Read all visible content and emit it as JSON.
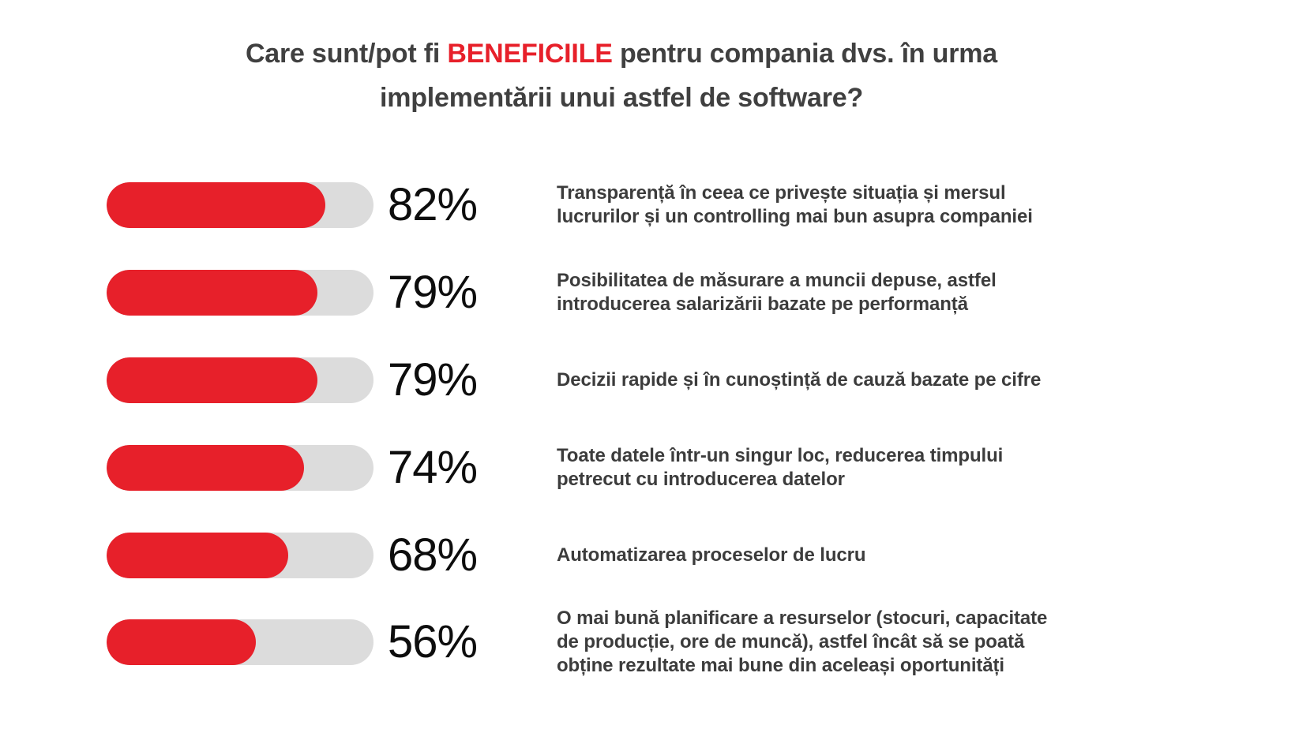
{
  "page": {
    "background_color": "#ffffff"
  },
  "title": {
    "prefix": "Care sunt/pot fi ",
    "highlight": "BENEFICIILE",
    "suffix": " pentru compania dvs. în urma\nimplementării unui astfel de software?",
    "text_color": "#404040",
    "highlight_color": "#e7202a"
  },
  "chart_data": {
    "type": "bar",
    "orientation": "horizontal",
    "unit": "%",
    "value_range": [
      0,
      100
    ],
    "bar_track_color": "#dcdcdc",
    "bar_fill_color": "#e7202a",
    "value_label_color": "#0d0d0d",
    "category_label_color": "#3c3c3c",
    "categories": [
      "Transparență în ceea ce privește situația și mersul lucrurilor și un controlling mai bun asupra companiei",
      "Posibilitatea de măsurare a muncii depuse, astfel introducerea salarizării bazate pe performanță",
      "Decizii rapide și în cunoștință de cauză bazate pe cifre",
      "Toate datele într-un singur loc, reducerea timpului petrecut cu introducerea datelor",
      "Automatizarea proceselor de lucru",
      "O mai bună planificare a resurselor (stocuri, capacitate de producție, ore de muncă), astfel încât să se poată obține rezultate mai bune din aceleași oportunități"
    ],
    "values": [
      82,
      79,
      79,
      74,
      68,
      56
    ],
    "rows": [
      {
        "value": 82,
        "value_label": "82%",
        "label": "Transparență în ceea ce privește situația și mersul\nlucrurilor și un controlling mai bun asupra companiei"
      },
      {
        "value": 79,
        "value_label": "79%",
        "label": "Posibilitatea de măsurare a muncii depuse, astfel\nintroducerea salarizării bazate pe performanță"
      },
      {
        "value": 79,
        "value_label": "79%",
        "label": "Decizii rapide și în cunoștință de cauză bazate pe cifre"
      },
      {
        "value": 74,
        "value_label": "74%",
        "label": "Toate datele într-un singur loc, reducerea timpului\npetrecut cu introducerea datelor"
      },
      {
        "value": 68,
        "value_label": "68%",
        "label": "Automatizarea proceselor de lucru"
      },
      {
        "value": 56,
        "value_label": "56%",
        "label": "O mai bună planificare a resurselor (stocuri, capacitate\nde producție, ore de muncă), astfel încât să se poată\nobține rezultate mai bune din aceleași oportunități"
      }
    ]
  }
}
